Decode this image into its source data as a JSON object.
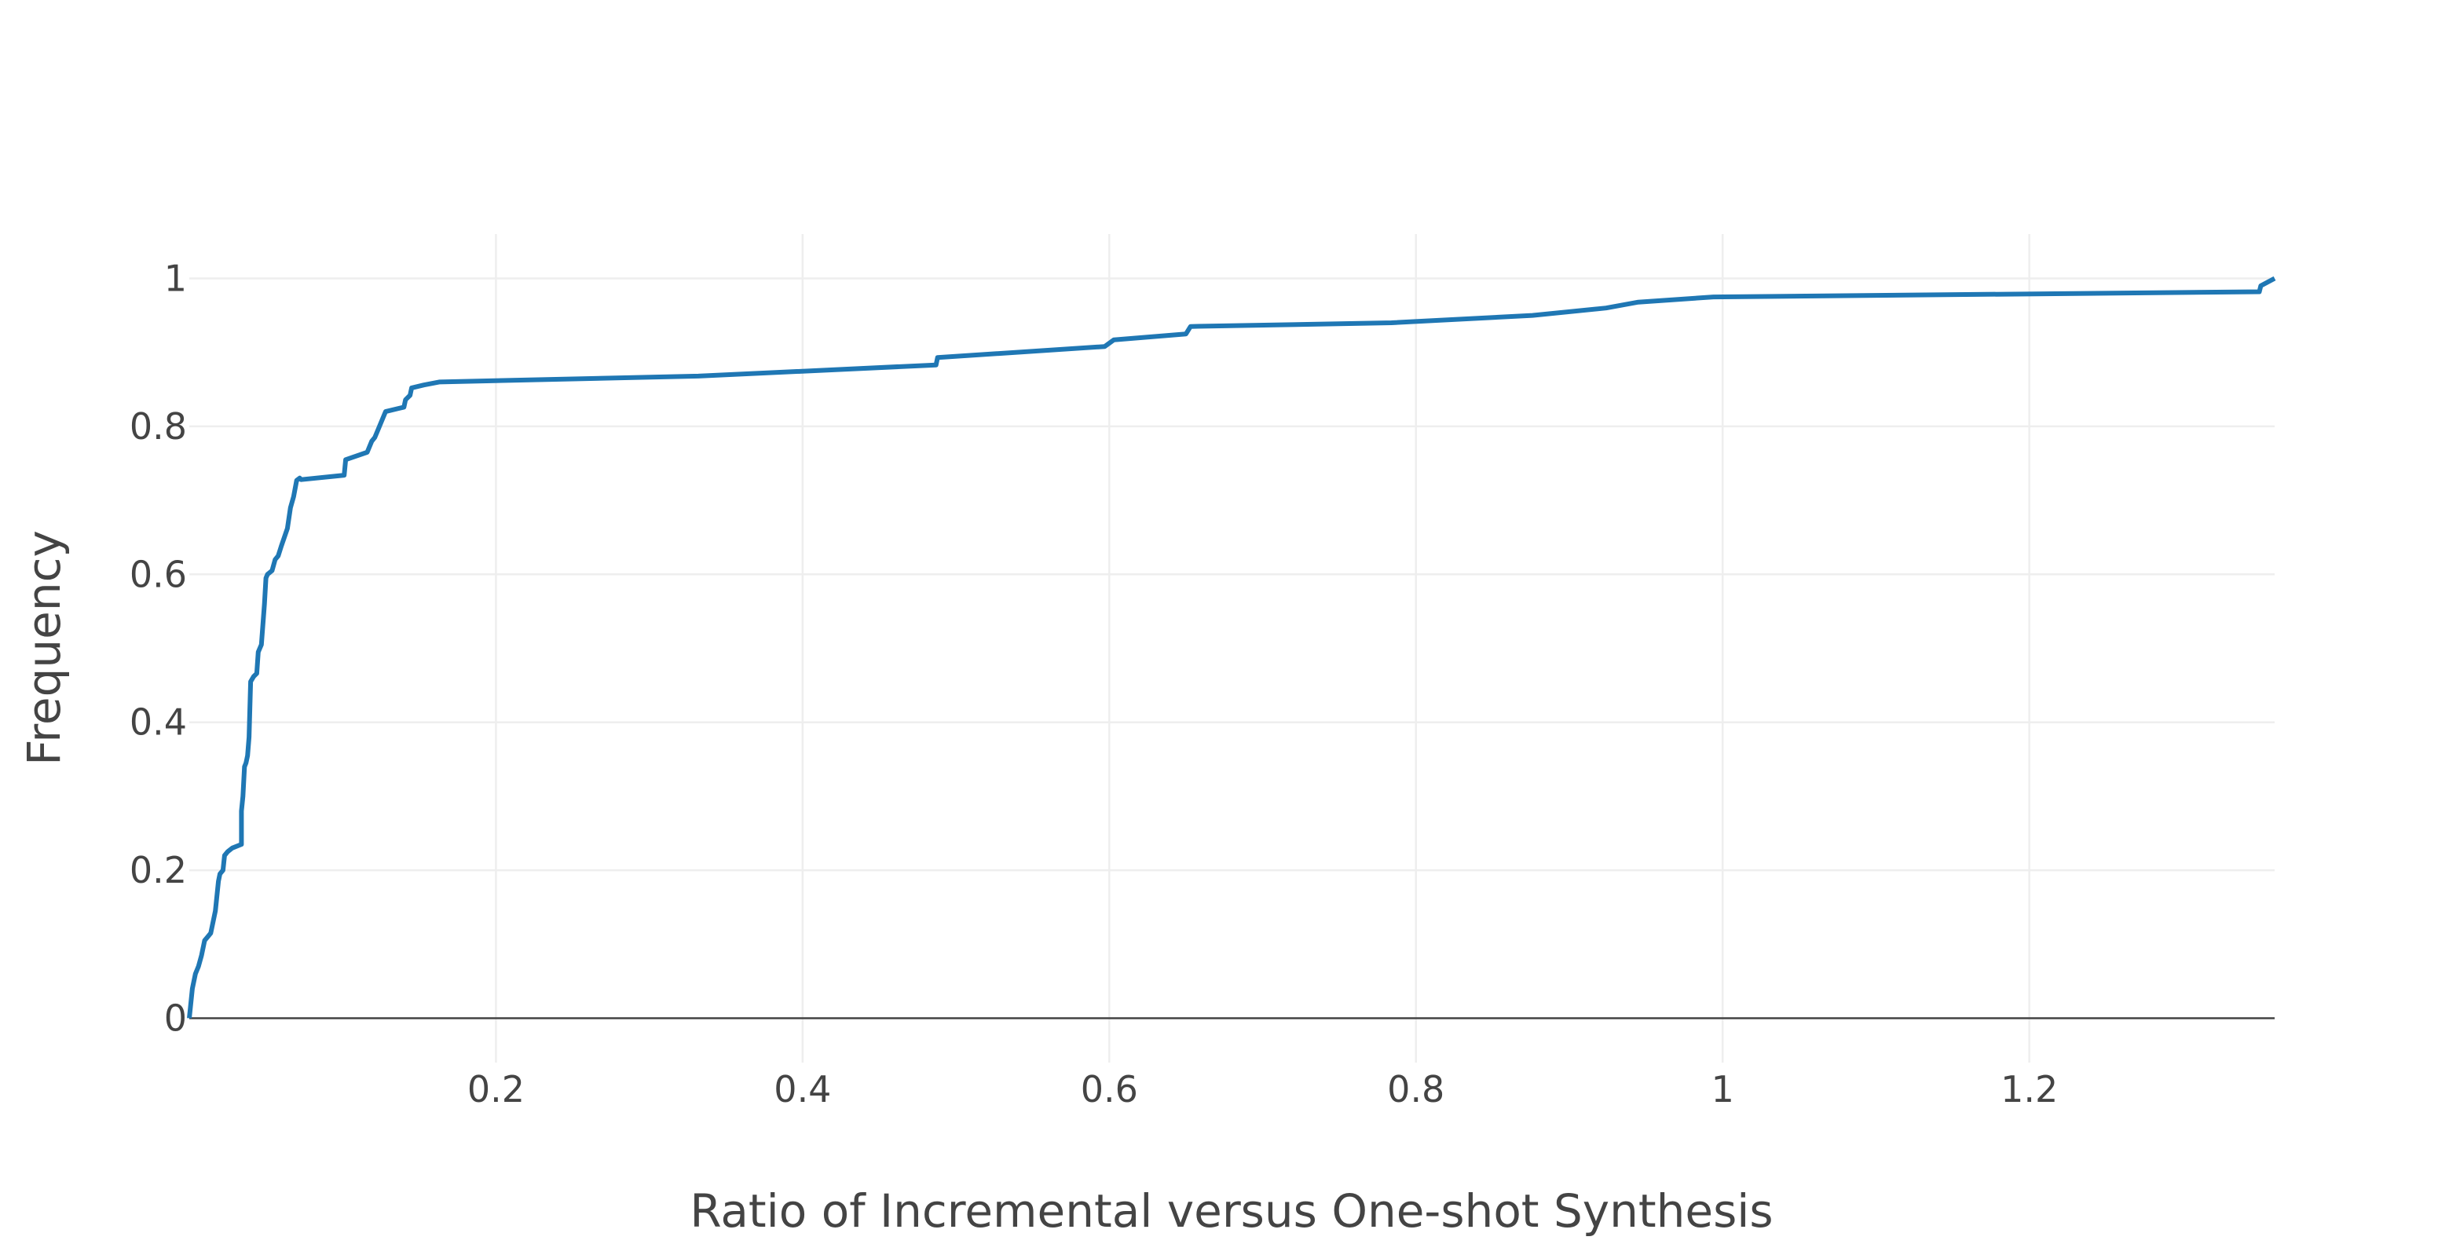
{
  "chart_data": {
    "type": "line",
    "title": "",
    "xlabel": "Ratio of Incremental versus One-shot Synthesis",
    "ylabel": "Frequency",
    "xlim": [
      0,
      1.36
    ],
    "ylim": [
      -0.06,
      1.06
    ],
    "grid": true,
    "legend": "none",
    "x_ticks": [
      {
        "value": 0.2,
        "label": "0.2"
      },
      {
        "value": 0.4,
        "label": "0.4"
      },
      {
        "value": 0.6,
        "label": "0.6"
      },
      {
        "value": 0.8,
        "label": "0.8"
      },
      {
        "value": 1.0,
        "label": "1"
      },
      {
        "value": 1.2,
        "label": "1.2"
      }
    ],
    "y_ticks": [
      {
        "value": 0,
        "label": "0"
      },
      {
        "value": 0.2,
        "label": "0.2"
      },
      {
        "value": 0.4,
        "label": "0.4"
      },
      {
        "value": 0.6,
        "label": "0.6"
      },
      {
        "value": 0.8,
        "label": "0.8"
      },
      {
        "value": 1.0,
        "label": "1"
      }
    ],
    "series": [
      {
        "color": "#1f77b4",
        "x": [
          0.0,
          0.002,
          0.004,
          0.006,
          0.008,
          0.01,
          0.012,
          0.014,
          0.017,
          0.019,
          0.02,
          0.022,
          0.023,
          0.025,
          0.028,
          0.034,
          0.034,
          0.035,
          0.036,
          0.037,
          0.038,
          0.039,
          0.04,
          0.042,
          0.044,
          0.045,
          0.047,
          0.049,
          0.05,
          0.051,
          0.054,
          0.056,
          0.058,
          0.06,
          0.064,
          0.066,
          0.068,
          0.07,
          0.072,
          0.073,
          0.101,
          0.102,
          0.116,
          0.119,
          0.121,
          0.124,
          0.126,
          0.128,
          0.14,
          0.141,
          0.144,
          0.145,
          0.153,
          0.163,
          0.332,
          0.487,
          0.488,
          0.597,
          0.603,
          0.65,
          0.653,
          0.784,
          0.876,
          0.924,
          0.945,
          0.994,
          1.35,
          1.351,
          1.36
        ],
        "y": [
          0.0,
          0.04,
          0.06,
          0.07,
          0.085,
          0.105,
          0.11,
          0.115,
          0.145,
          0.185,
          0.195,
          0.2,
          0.22,
          0.225,
          0.23,
          0.235,
          0.28,
          0.3,
          0.34,
          0.345,
          0.355,
          0.38,
          0.455,
          0.462,
          0.466,
          0.495,
          0.505,
          0.56,
          0.595,
          0.6,
          0.605,
          0.62,
          0.625,
          0.638,
          0.662,
          0.69,
          0.705,
          0.727,
          0.73,
          0.728,
          0.734,
          0.755,
          0.765,
          0.78,
          0.785,
          0.8,
          0.81,
          0.82,
          0.826,
          0.836,
          0.842,
          0.852,
          0.856,
          0.86,
          0.868,
          0.883,
          0.893,
          0.908,
          0.917,
          0.925,
          0.935,
          0.94,
          0.95,
          0.96,
          0.968,
          0.975,
          0.982,
          0.99,
          1.0
        ]
      }
    ]
  }
}
